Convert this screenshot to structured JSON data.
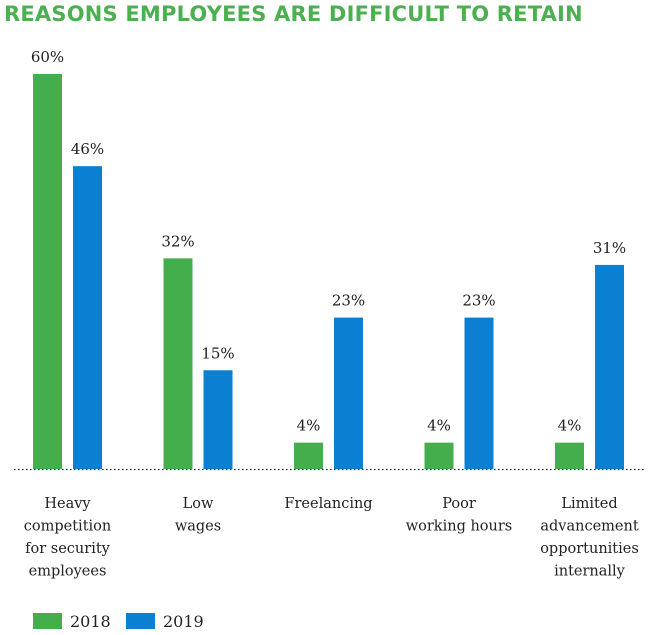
{
  "chart_data": {
    "type": "bar",
    "title": "REASONS EMPLOYEES ARE DIFFICULT TO RETAIN",
    "categories": [
      [
        "Heavy",
        "competition",
        "for security",
        "employees"
      ],
      [
        "Low",
        "wages"
      ],
      [
        "Freelancing"
      ],
      [
        "Poor",
        "working hours"
      ],
      [
        "Limited",
        "advancement",
        "opportunities",
        "internally"
      ]
    ],
    "series": [
      {
        "name": "2018",
        "color": "#44ad4c",
        "values": [
          60,
          32,
          4,
          4,
          4
        ],
        "labels": [
          "60%",
          "32%",
          "4%",
          "4%",
          "4%"
        ]
      },
      {
        "name": "2019",
        "color": "#0b7fd2",
        "values": [
          46,
          15,
          23,
          23,
          31
        ],
        "labels": [
          "46%",
          "15%",
          "23%",
          "23%",
          "31%"
        ]
      }
    ],
    "ylim": [
      0,
      60
    ],
    "grid": false,
    "legend": "bottom-left"
  }
}
